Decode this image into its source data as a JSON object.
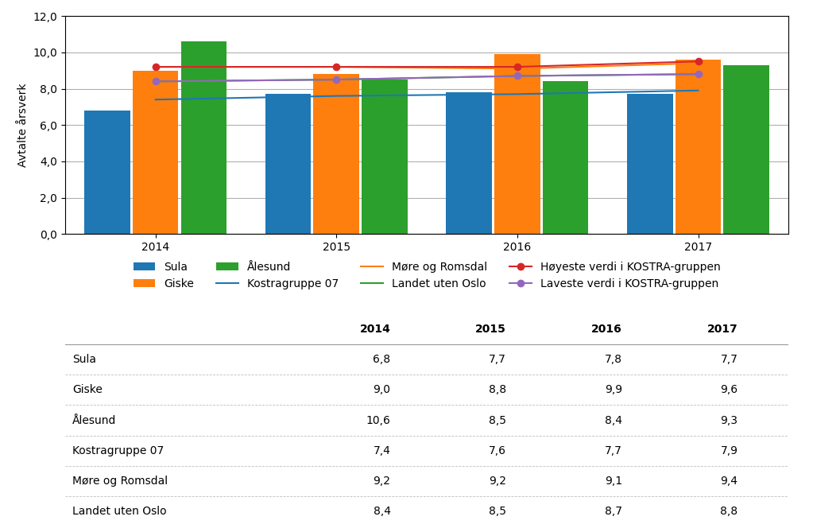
{
  "chart_data": [
    {
      "type": "bar",
      "ylabel": "Avtalte årsverk",
      "categories": [
        "2014",
        "2015",
        "2016",
        "2017"
      ],
      "series": [
        {
          "name": "Sula",
          "type": "bar",
          "values": [
            6.8,
            7.7,
            7.8,
            7.7
          ]
        },
        {
          "name": "Giske",
          "type": "bar",
          "values": [
            9.0,
            8.8,
            9.9,
            9.6
          ]
        },
        {
          "name": "Ålesund",
          "type": "bar",
          "values": [
            10.6,
            8.5,
            8.4,
            9.3
          ]
        },
        {
          "name": "Kostragruppe 07",
          "type": "line",
          "line_style": "solid",
          "values": [
            7.4,
            7.6,
            7.7,
            7.9
          ]
        },
        {
          "name": "Møre og Romsdal",
          "type": "line",
          "line_style": "solid",
          "values": [
            9.2,
            9.2,
            9.1,
            9.4
          ]
        },
        {
          "name": "Landet uten Oslo",
          "type": "line",
          "line_style": "solid",
          "values": [
            8.4,
            8.5,
            8.7,
            8.8
          ]
        },
        {
          "name": "Høyeste verdi i KOSTRA-gruppen",
          "type": "line",
          "line_style": "solid",
          "marker": "o",
          "values": [
            9.2,
            9.2,
            9.2,
            9.5
          ]
        },
        {
          "name": "Laveste verdi i KOSTRA-gruppen",
          "type": "line",
          "line_style": "solid",
          "marker": "o",
          "values": [
            8.4,
            8.5,
            8.7,
            8.8
          ]
        }
      ],
      "ylim": [
        0,
        12
      ],
      "yticks": [
        {
          "value": 0.0,
          "label": "0,0"
        },
        {
          "value": 2.0,
          "label": "2,0"
        },
        {
          "value": 4.0,
          "label": "4,0"
        },
        {
          "value": 6.0,
          "label": "6,0"
        },
        {
          "value": 8.0,
          "label": "8,0"
        },
        {
          "value": 10.0,
          "label": "10,0"
        },
        {
          "value": 12.0,
          "label": "12,0"
        }
      ],
      "grid": true,
      "legend": "upper center"
    },
    {
      "type": "table",
      "columns": [
        "2014",
        "2015",
        "2016",
        "2017"
      ],
      "rows": [
        {
          "name": "Sula",
          "values": [
            6.8,
            7.7,
            7.8,
            7.7
          ],
          "value_labels": [
            "6,8",
            "7,7",
            "7,8",
            "7,7"
          ]
        },
        {
          "name": "Giske",
          "values": [
            9.0,
            8.8,
            9.9,
            9.6
          ],
          "value_labels": [
            "9,0",
            "8,8",
            "9,9",
            "9,6"
          ]
        },
        {
          "name": "Ålesund",
          "values": [
            10.6,
            8.5,
            8.4,
            9.3
          ],
          "value_labels": [
            "10,6",
            "8,5",
            "8,4",
            "9,3"
          ]
        },
        {
          "name": "Kostragruppe 07",
          "values": [
            7.4,
            7.6,
            7.7,
            7.9
          ],
          "value_labels": [
            "7,4",
            "7,6",
            "7,7",
            "7,9"
          ]
        },
        {
          "name": "Møre og Romsdal",
          "values": [
            9.2,
            9.2,
            9.1,
            9.4
          ],
          "value_labels": [
            "9,2",
            "9,2",
            "9,1",
            "9,4"
          ]
        },
        {
          "name": "Landet uten Oslo",
          "values": [
            8.4,
            8.5,
            8.7,
            8.8
          ],
          "value_labels": [
            "8,4",
            "8,5",
            "8,7",
            "8,8"
          ]
        }
      ]
    }
  ]
}
